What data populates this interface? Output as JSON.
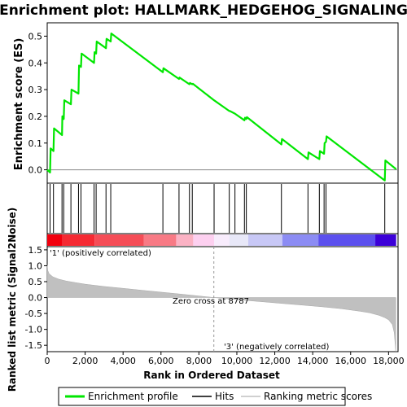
{
  "title": "Enrichment plot: HALLMARK_HEDGEHOG_SIGNALING",
  "legend": {
    "items": [
      {
        "label": "Enrichment profile",
        "color": "#00e600"
      },
      {
        "label": "Hits",
        "color": "#000000"
      },
      {
        "label": "Ranking metric scores",
        "color": "#c0c0c0"
      }
    ]
  },
  "chart_data": [
    {
      "type": "line",
      "panel": "enrichment",
      "ylabel": "Enrichment score (ES)",
      "xlim": [
        0,
        18500
      ],
      "ylim": [
        -0.05,
        0.55
      ],
      "yticks": [
        0.0,
        0.1,
        0.2,
        0.3,
        0.4,
        0.5
      ],
      "ytick_labels": [
        "0.0",
        "0.1",
        "0.2",
        "0.3",
        "0.4",
        "0.5"
      ],
      "grid": false,
      "color": "#00e600",
      "points": [
        [
          0,
          0.0
        ],
        [
          150,
          -0.01
        ],
        [
          180,
          0.08
        ],
        [
          330,
          0.07
        ],
        [
          360,
          0.155
        ],
        [
          780,
          0.13
        ],
        [
          800,
          0.2
        ],
        [
          870,
          0.19
        ],
        [
          900,
          0.26
        ],
        [
          1250,
          0.245
        ],
        [
          1280,
          0.3
        ],
        [
          1650,
          0.285
        ],
        [
          1680,
          0.39
        ],
        [
          1780,
          0.385
        ],
        [
          1810,
          0.435
        ],
        [
          2470,
          0.4
        ],
        [
          2500,
          0.44
        ],
        [
          2580,
          0.435
        ],
        [
          2610,
          0.48
        ],
        [
          3100,
          0.455
        ],
        [
          3130,
          0.49
        ],
        [
          3350,
          0.48
        ],
        [
          3380,
          0.51
        ],
        [
          6100,
          0.365
        ],
        [
          6130,
          0.38
        ],
        [
          6950,
          0.34
        ],
        [
          6980,
          0.345
        ],
        [
          7500,
          0.32
        ],
        [
          7530,
          0.325
        ],
        [
          7650,
          0.32
        ],
        [
          7680,
          0.322
        ],
        [
          8800,
          0.26
        ],
        [
          9600,
          0.22
        ],
        [
          9630,
          0.22
        ],
        [
          9900,
          0.21
        ],
        [
          10400,
          0.185
        ],
        [
          10430,
          0.195
        ],
        [
          10500,
          0.19
        ],
        [
          10530,
          0.197
        ],
        [
          12350,
          0.095
        ],
        [
          12380,
          0.115
        ],
        [
          13750,
          0.04
        ],
        [
          13780,
          0.065
        ],
        [
          14350,
          0.04
        ],
        [
          14380,
          0.07
        ],
        [
          14600,
          0.06
        ],
        [
          14630,
          0.1
        ],
        [
          14700,
          0.105
        ],
        [
          14730,
          0.125
        ],
        [
          17800,
          -0.04
        ],
        [
          17830,
          0.035
        ],
        [
          18400,
          0.002
        ]
      ]
    },
    {
      "type": "scatter",
      "panel": "hits",
      "xlim": [
        0,
        18500
      ],
      "x": [
        150,
        330,
        780,
        870,
        1250,
        1650,
        1780,
        2470,
        2580,
        3100,
        3350,
        6100,
        6950,
        7500,
        7650,
        8800,
        9600,
        9900,
        10400,
        10500,
        12350,
        13750,
        14350,
        14600,
        14700,
        17800
      ]
    },
    {
      "type": "heatmap",
      "panel": "rank-colorbar",
      "xlim": [
        0,
        18500
      ],
      "segments": [
        {
          "start": 0,
          "end": 800,
          "color": "#f2000e"
        },
        {
          "start": 800,
          "end": 2500,
          "color": "#f52a33"
        },
        {
          "start": 2500,
          "end": 5100,
          "color": "#f54d57"
        },
        {
          "start": 5100,
          "end": 6800,
          "color": "#f87a85"
        },
        {
          "start": 6800,
          "end": 7700,
          "color": "#fbb2c4"
        },
        {
          "start": 7700,
          "end": 8800,
          "color": "#fdd0f0"
        },
        {
          "start": 8800,
          "end": 9600,
          "color": "#f8ecfc"
        },
        {
          "start": 9600,
          "end": 10600,
          "color": "#e8e8f8"
        },
        {
          "start": 10600,
          "end": 12400,
          "color": "#c8c8f6"
        },
        {
          "start": 12400,
          "end": 14300,
          "color": "#8c8cf4"
        },
        {
          "start": 14300,
          "end": 17300,
          "color": "#5c50ee"
        },
        {
          "start": 17300,
          "end": 18400,
          "color": "#3c00d8"
        }
      ]
    },
    {
      "type": "area",
      "panel": "ranking-metric",
      "xlabel": "Rank in Ordered Dataset",
      "ylabel": "Ranked list metric (Signal2Noise)",
      "xlim": [
        0,
        18500
      ],
      "ylim": [
        -1.7,
        1.6
      ],
      "xticks": [
        0,
        2000,
        4000,
        6000,
        8000,
        10000,
        12000,
        14000,
        16000,
        18000
      ],
      "xtick_labels": [
        "0",
        "2,000",
        "4,000",
        "6,000",
        "8,000",
        "10,000",
        "12,000",
        "14,000",
        "16,000",
        "18,000"
      ],
      "yticks": [
        -1.5,
        -1.0,
        -0.5,
        0.0,
        0.5,
        1.0,
        1.5
      ],
      "ytick_labels": [
        "-1.5",
        "-1.0",
        "-0.5",
        "0.0",
        "0.5",
        "1.0",
        "1.5"
      ],
      "color": "#c0c0c0",
      "x": [
        0,
        30,
        100,
        300,
        600,
        1000,
        1500,
        2000,
        3000,
        4000,
        5000,
        6000,
        7000,
        8000,
        8787,
        9500,
        10500,
        11500,
        12500,
        13500,
        14500,
        15500,
        16500,
        17000,
        17500,
        17800,
        18000,
        18200,
        18300,
        18380
      ],
      "y": [
        1.02,
        0.85,
        0.75,
        0.65,
        0.58,
        0.52,
        0.47,
        0.42,
        0.35,
        0.29,
        0.23,
        0.17,
        0.11,
        0.05,
        0.0,
        -0.04,
        -0.09,
        -0.14,
        -0.19,
        -0.24,
        -0.29,
        -0.35,
        -0.43,
        -0.48,
        -0.56,
        -0.63,
        -0.7,
        -0.85,
        -1.1,
        -1.7
      ],
      "annotations": [
        {
          "text": "'1' (positively correlated)",
          "color": "#cc0000"
        },
        {
          "text": "Zero cross at 8787",
          "x": 8787
        },
        {
          "text": "'3' (negatively correlated)",
          "color": "#0000cc"
        }
      ]
    }
  ]
}
